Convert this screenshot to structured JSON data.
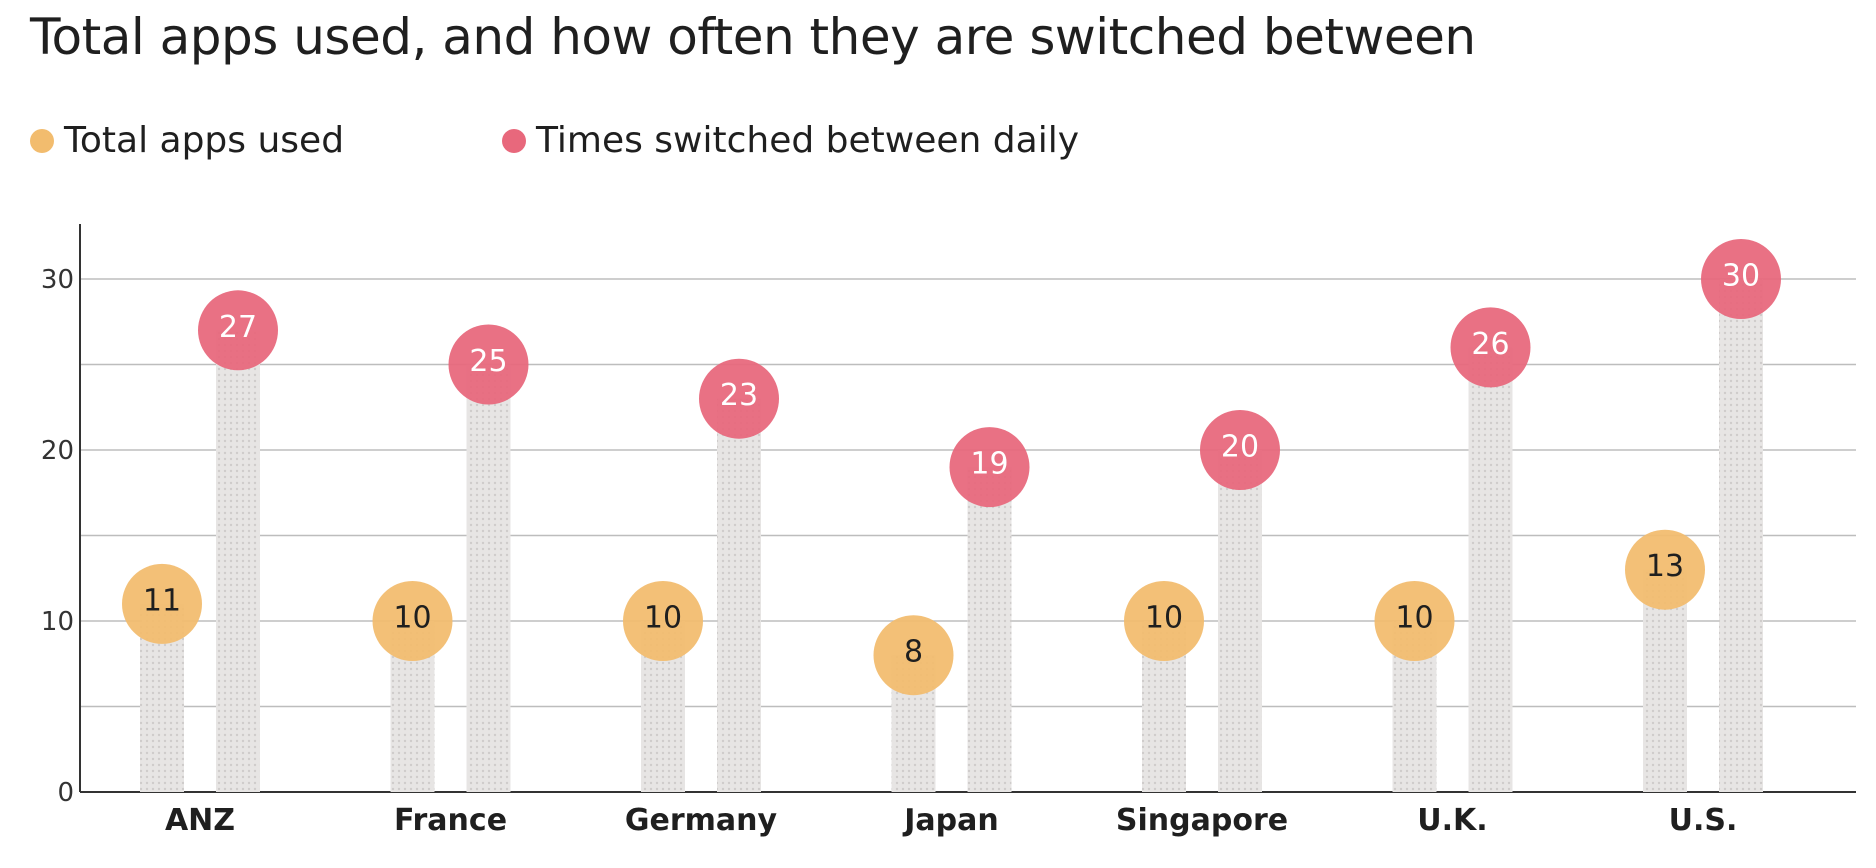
{
  "title": "Total apps used, and how often they are switched between",
  "legend": [
    {
      "label": "Total apps used",
      "color": "#F2BC6E"
    },
    {
      "label": "Times switched between daily",
      "color": "#E8687C"
    }
  ],
  "chart_data": {
    "type": "bar",
    "title": "Total apps used, and how often they are switched between",
    "categories": [
      "ANZ",
      "France",
      "Germany",
      "Japan",
      "Singapore",
      "U.K.",
      "U.S."
    ],
    "series": [
      {
        "name": "Total apps used",
        "values": [
          11,
          10,
          10,
          8,
          10,
          10,
          13
        ],
        "color": "#F2BC6E",
        "label_color": "#1f1f1f"
      },
      {
        "name": "Times switched between daily",
        "values": [
          27,
          25,
          23,
          19,
          20,
          26,
          30
        ],
        "color": "#E8687C",
        "label_color": "#ffffff"
      }
    ],
    "ylim": [
      0,
      33
    ],
    "yticks": [
      0,
      10,
      20,
      30
    ],
    "xlabel": "",
    "ylabel": "",
    "grid": true,
    "legend_position": "top-left",
    "bar_color": "#e4e2e1"
  }
}
